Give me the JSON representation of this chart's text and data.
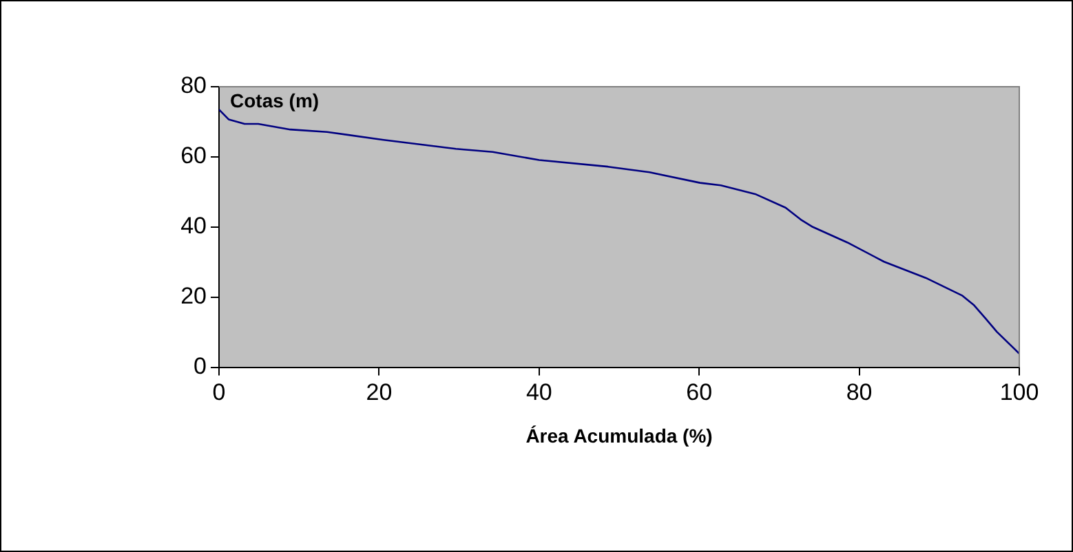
{
  "chart_data": {
    "type": "line",
    "xlabel": "Área Acumulada (%)",
    "ylabel": "Cotas (m)",
    "x": [
      0,
      1.2,
      3.2,
      4.9,
      8.9,
      13.5,
      20.4,
      29.6,
      34.2,
      40.0,
      48.6,
      53.8,
      60.1,
      62.7,
      67.0,
      70.8,
      72.7,
      74.2,
      78.5,
      83.1,
      88.3,
      92.9,
      94.3,
      95.8,
      97.2,
      100
    ],
    "series": [
      {
        "color": "#000080",
        "values": [
          73.5,
          70.7,
          69.4,
          69.4,
          67.8,
          67.1,
          64.9,
          62.3,
          61.4,
          59.1,
          57.2,
          55.6,
          52.6,
          51.9,
          49.4,
          45.5,
          42.1,
          40.0,
          35.6,
          30.1,
          25.5,
          20.4,
          17.8,
          13.9,
          10.1,
          3.9
        ]
      }
    ],
    "xlim": [
      0,
      100
    ],
    "xticks": [
      0,
      20,
      40,
      60,
      80,
      100
    ],
    "ylim": [
      0,
      80
    ],
    "yticks": [
      0,
      20,
      40,
      60,
      80
    ],
    "grid": false,
    "legend": false,
    "marker": "none",
    "line_style": "solid"
  }
}
